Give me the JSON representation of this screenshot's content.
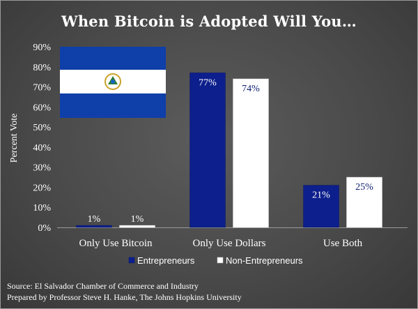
{
  "chart_data": {
    "type": "bar",
    "title": "When Bitcoin is Adopted Will You…",
    "ylabel": "Percent Vote",
    "xlabel": "",
    "ylim": [
      0,
      90
    ],
    "yticks": [
      0,
      10,
      20,
      30,
      40,
      50,
      60,
      70,
      80,
      90
    ],
    "ytick_labels": [
      "0%",
      "10%",
      "20%",
      "30%",
      "40%",
      "50%",
      "60%",
      "70%",
      "80%",
      "90%"
    ],
    "categories": [
      "Only Use Bitcoin",
      "Only Use Dollars",
      "Use Both"
    ],
    "series": [
      {
        "name": "Entrepreneurs",
        "color": "#0d1f8c",
        "values": [
          1,
          77,
          21
        ],
        "labels": [
          "1%",
          "77%",
          "21%"
        ]
      },
      {
        "name": "Non-Entrepreneurs",
        "color": "#ffffff",
        "values": [
          1,
          74,
          25
        ],
        "labels": [
          "1%",
          "74%",
          "25%"
        ]
      }
    ],
    "legend_position": "bottom-center",
    "grid": false
  },
  "flag": {
    "name": "El Salvador flag",
    "colors": {
      "blue": "#0f3fa8",
      "white": "#ffffff",
      "emblem": "#c9a227"
    }
  },
  "source": {
    "line1": "Source: El Salvador Chamber of Commerce and Industry",
    "line2": "Prepared by Professor Steve H. Hanke, The Johns Hopkins University"
  }
}
